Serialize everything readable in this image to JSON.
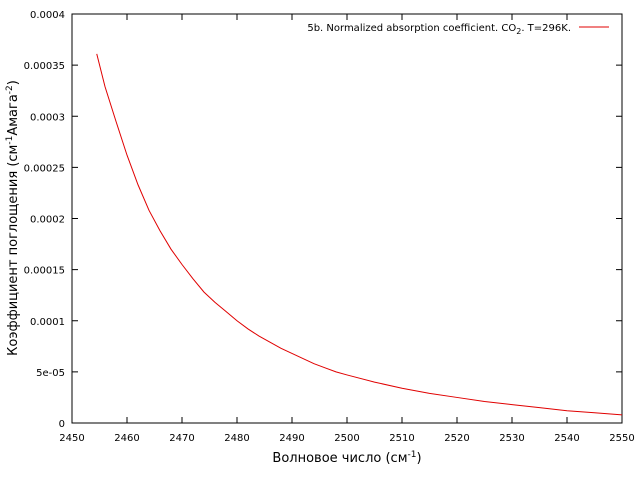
{
  "chart_data": {
    "type": "line",
    "xlabel_main": "Волновое число (см",
    "xlabel_sup": "-1",
    "xlabel_end": ")",
    "ylabel_main": "Коэффициент поглощения (см",
    "ylabel_sup1": "-1",
    "ylabel_mid": "Амага",
    "ylabel_sup2": "-2",
    "ylabel_end": ")",
    "xlim": [
      2450,
      2550
    ],
    "ylim": [
      0,
      0.0004
    ],
    "xticks": [
      2450,
      2460,
      2470,
      2480,
      2490,
      2500,
      2510,
      2520,
      2530,
      2540,
      2550
    ],
    "yticks": [
      0,
      5e-05,
      0.0001,
      0.00015,
      0.0002,
      0.00025,
      0.0003,
      0.00035,
      0.0004
    ],
    "ytick_labels": [
      "0",
      "5e-05",
      "0.0001",
      "0.00015",
      "0.0002",
      "0.00025",
      "0.0003",
      "0.00035",
      "0.0004"
    ],
    "grid": false,
    "legend_position": "top-right",
    "series": [
      {
        "name_main": "5b. Normalized absorption coefficient. CO",
        "name_sub": "2",
        "name_end": ". T=296K.",
        "color": "#e00000",
        "x": [
          2454.5,
          2456,
          2458,
          2460,
          2462,
          2464,
          2466,
          2468,
          2470,
          2472,
          2474,
          2476,
          2478,
          2480,
          2482,
          2484,
          2486,
          2488,
          2490,
          2492,
          2494,
          2496,
          2498,
          2500,
          2505,
          2510,
          2515,
          2520,
          2525,
          2530,
          2535,
          2540,
          2545,
          2550
        ],
        "y": [
          0.000361,
          0.000329,
          0.000295,
          0.000262,
          0.000233,
          0.000208,
          0.000188,
          0.00017,
          0.000155,
          0.000141,
          0.000128,
          0.000118,
          0.000109,
          0.0001,
          9.2e-05,
          8.5e-05,
          7.9e-05,
          7.3e-05,
          6.8e-05,
          6.3e-05,
          5.8e-05,
          5.4e-05,
          5e-05,
          4.7e-05,
          4e-05,
          3.4e-05,
          2.9e-05,
          2.5e-05,
          2.1e-05,
          1.8e-05,
          1.5e-05,
          1.2e-05,
          1e-05,
          8e-06
        ]
      }
    ]
  }
}
